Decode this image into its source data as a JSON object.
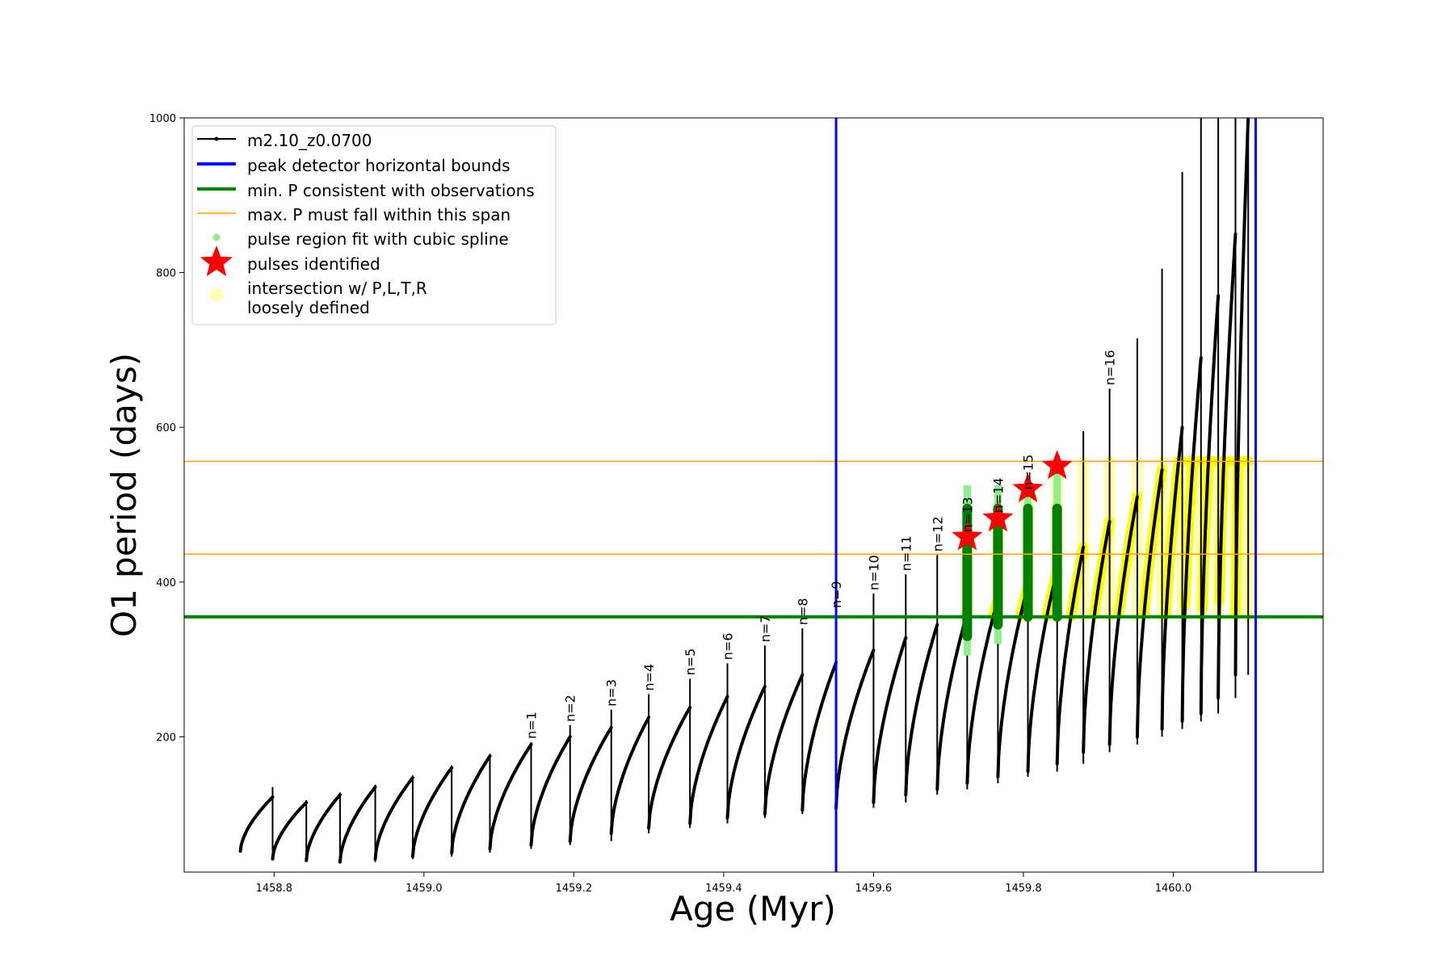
{
  "chart_data": {
    "type": "line",
    "xlabel": "Age (Myr)",
    "ylabel": "O1 period (days)",
    "xlim": [
      1458.68,
      1460.2
    ],
    "ylim": [
      25,
      1000
    ],
    "x_ticks": [
      1458.8,
      1459.0,
      1459.2,
      1459.4,
      1459.6,
      1459.8,
      1460.0
    ],
    "x_tick_labels": [
      "1458.8",
      "1459.0",
      "1459.2",
      "1459.4",
      "1459.6",
      "1459.8",
      "1460.0"
    ],
    "y_ticks": [
      200,
      400,
      600,
      800,
      1000
    ],
    "y_tick_labels": [
      "200",
      "400",
      "600",
      "800",
      "1000"
    ],
    "grid": false,
    "legend_position": "top-left",
    "legend": [
      {
        "label": "m2.10_z0.0700",
        "kind": "line-marker",
        "color": "#000000"
      },
      {
        "label": "peak detector horizontal bounds",
        "kind": "line",
        "color": "#0000ff"
      },
      {
        "label": "min. P consistent with observations",
        "kind": "line",
        "color": "#008000"
      },
      {
        "label": "max. P must fall within this span",
        "kind": "thin-line",
        "color": "#ffa500"
      },
      {
        "label": "pulse region fit with cubic spline",
        "kind": "dot",
        "color": "#90ee90"
      },
      {
        "label": "pulses identified",
        "kind": "star",
        "color": "#ff0000"
      },
      {
        "label": "intersection w/ P,L,T,R",
        "label2": "loosely defined",
        "kind": "circle",
        "color": "#ffffb3"
      }
    ],
    "vertical_lines": {
      "color": "#0000ff",
      "x": [
        1459.55,
        1460.11
      ]
    },
    "min_period_line": {
      "color": "#008000",
      "y": 355
    },
    "max_period_span": {
      "color": "#ffa500",
      "y": [
        436,
        556
      ]
    },
    "colors": {
      "track": "#000000",
      "spline": "#90ee90",
      "spline_fit": "#008000",
      "star": "#ff0000",
      "intersection": "#ffff00",
      "intersection_loose": "#ffff8a"
    },
    "series": [
      {
        "name": "m2.10_z0.0700",
        "pulses": [
          {
            "n": "",
            "start": 1458.755,
            "end": 1458.798,
            "min": 52,
            "max": 122,
            "spike": 135
          },
          {
            "n": "",
            "start": 1458.798,
            "end": 1458.843,
            "min": 42,
            "max": 115,
            "spike": 118
          },
          {
            "n": "",
            "start": 1458.843,
            "end": 1458.888,
            "min": 40,
            "max": 125,
            "spike": 128
          },
          {
            "n": "",
            "start": 1458.888,
            "end": 1458.935,
            "min": 38,
            "max": 135,
            "spike": 138
          },
          {
            "n": "",
            "start": 1458.935,
            "end": 1458.985,
            "min": 42,
            "max": 147,
            "spike": 150
          },
          {
            "n": "",
            "start": 1458.985,
            "end": 1459.037,
            "min": 45,
            "max": 160,
            "spike": 163
          },
          {
            "n": "",
            "start": 1459.037,
            "end": 1459.088,
            "min": 50,
            "max": 175,
            "spike": 178
          },
          {
            "n": "n=1",
            "start": 1459.088,
            "end": 1459.143,
            "min": 55,
            "max": 190,
            "spike": 193
          },
          {
            "n": "n=2",
            "start": 1459.143,
            "end": 1459.195,
            "min": 60,
            "max": 200,
            "spike": 215
          },
          {
            "n": "n=3",
            "start": 1459.195,
            "end": 1459.25,
            "min": 65,
            "max": 212,
            "spike": 235
          },
          {
            "n": "n=4",
            "start": 1459.25,
            "end": 1459.3,
            "min": 75,
            "max": 225,
            "spike": 255
          },
          {
            "n": "n=5",
            "start": 1459.3,
            "end": 1459.355,
            "min": 82,
            "max": 238,
            "spike": 275
          },
          {
            "n": "n=6",
            "start": 1459.355,
            "end": 1459.405,
            "min": 88,
            "max": 252,
            "spike": 295
          },
          {
            "n": "n=7",
            "start": 1459.405,
            "end": 1459.455,
            "min": 95,
            "max": 265,
            "spike": 318
          },
          {
            "n": "n=8",
            "start": 1459.455,
            "end": 1459.505,
            "min": 100,
            "max": 280,
            "spike": 340
          },
          {
            "n": "n=9",
            "start": 1459.505,
            "end": 1459.55,
            "min": 105,
            "max": 296,
            "spike": 362
          },
          {
            "n": "n=10",
            "start": 1459.55,
            "end": 1459.6,
            "min": 108,
            "max": 312,
            "spike": 385
          },
          {
            "n": "n=11",
            "start": 1459.6,
            "end": 1459.643,
            "min": 115,
            "max": 328,
            "spike": 410
          },
          {
            "n": "n=12",
            "start": 1459.643,
            "end": 1459.685,
            "min": 125,
            "max": 345,
            "spike": 435
          },
          {
            "n": "n=13",
            "start": 1459.685,
            "end": 1459.725,
            "min": 132,
            "max": 360,
            "spike": 460
          },
          {
            "n": "n=14",
            "start": 1459.725,
            "end": 1459.766,
            "min": 140,
            "max": 378,
            "spike": 485
          },
          {
            "n": "n=15",
            "start": 1459.766,
            "end": 1459.806,
            "min": 148,
            "max": 395,
            "spike": 515
          },
          {
            "n": "",
            "start": 1459.806,
            "end": 1459.845,
            "min": 155,
            "max": 415,
            "spike": 545
          },
          {
            "n": "",
            "start": 1459.845,
            "end": 1459.88,
            "min": 165,
            "max": 445,
            "spike": 595
          },
          {
            "n": "n=16",
            "start": 1459.88,
            "end": 1459.915,
            "min": 180,
            "max": 478,
            "spike": 650
          },
          {
            "n": "",
            "start": 1459.915,
            "end": 1459.952,
            "min": 190,
            "max": 510,
            "spike": 715
          },
          {
            "n": "",
            "start": 1459.952,
            "end": 1459.985,
            "min": 200,
            "max": 545,
            "spike": 805
          },
          {
            "n": "",
            "start": 1459.985,
            "end": 1460.012,
            "min": 210,
            "max": 600,
            "spike": 930
          },
          {
            "n": "",
            "start": 1460.012,
            "end": 1460.037,
            "min": 220,
            "max": 690,
            "spike": 1000
          },
          {
            "n": "",
            "start": 1460.037,
            "end": 1460.06,
            "min": 230,
            "max": 770,
            "spike": 1000
          },
          {
            "n": "",
            "start": 1460.06,
            "end": 1460.083,
            "min": 250,
            "max": 850,
            "spike": 1000
          },
          {
            "n": "",
            "start": 1460.083,
            "end": 1460.1,
            "min": 280,
            "max": 1000,
            "spike": 1000
          }
        ]
      }
    ],
    "spline_fits": [
      {
        "n": "n=12",
        "x": 1459.725,
        "y_min": 330,
        "y_max": 495,
        "light_min": 305,
        "light_max": 525
      },
      {
        "n": "n=13",
        "x": 1459.766,
        "y_min": 345,
        "y_max": 495,
        "light_min": 320,
        "light_max": 525
      },
      {
        "n": "n=14",
        "x": 1459.806,
        "y_min": 355,
        "y_max": 495,
        "light_min": 355,
        "light_max": 510
      },
      {
        "n": "n=15",
        "x": 1459.845,
        "y_min": 355,
        "y_max": 495,
        "light_min": 355,
        "light_max": 540
      }
    ],
    "pulses_identified": [
      {
        "n": "n=12",
        "x": 1459.725,
        "y": 458
      },
      {
        "n": "n=13",
        "x": 1459.766,
        "y": 482
      },
      {
        "n": "n=14",
        "x": 1459.806,
        "y": 520
      },
      {
        "n": "n=15",
        "x": 1459.845,
        "y": 550
      }
    ]
  }
}
